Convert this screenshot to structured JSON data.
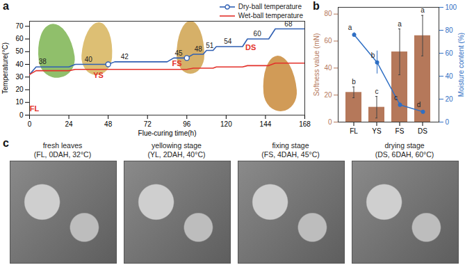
{
  "chart_data": [
    {
      "type": "line",
      "title": "a",
      "x_label": "Flue-curing time(h)",
      "y_label": "Temperature(°C)",
      "x": [
        0,
        4,
        24,
        28,
        48,
        52,
        84,
        88,
        96,
        100,
        106,
        108,
        112,
        114,
        130,
        133,
        146,
        150,
        168
      ],
      "xlim": [
        0,
        168
      ],
      "xticks": [
        0,
        24,
        48,
        72,
        96,
        120,
        144,
        168
      ],
      "ylim": [
        0,
        74
      ],
      "yticks": [
        0,
        10,
        20,
        30,
        40,
        50,
        60,
        70
      ],
      "legend": "top-right",
      "series": [
        {
          "name": "Dry-ball temperature",
          "color": "#2f5fb3",
          "marker": "circle",
          "values": [
            32,
            38,
            38,
            40,
            40,
            42,
            42,
            45,
            45,
            48,
            48,
            51,
            51,
            54,
            54,
            60,
            60,
            68,
            68
          ]
        },
        {
          "name": "Wet-ball temperature",
          "color": "#e3302a",
          "values": [
            32,
            35,
            35,
            36,
            36,
            36,
            36,
            36,
            36,
            37,
            37,
            37,
            37,
            38,
            38,
            39,
            39,
            41,
            41
          ]
        }
      ],
      "highlight_points": [
        {
          "x": 48,
          "y": 40
        },
        {
          "x": 96,
          "y": 45
        }
      ],
      "annotations": [
        {
          "text": "38",
          "x": 8,
          "y": 38
        },
        {
          "text": "40",
          "x": 36,
          "y": 40
        },
        {
          "text": "42",
          "x": 58,
          "y": 42
        },
        {
          "text": "45",
          "x": 91,
          "y": 45
        },
        {
          "text": "48",
          "x": 103,
          "y": 48
        },
        {
          "text": "51",
          "x": 110,
          "y": 51
        },
        {
          "text": "54",
          "x": 121,
          "y": 54
        },
        {
          "text": "60",
          "x": 139,
          "y": 60
        },
        {
          "text": "68",
          "x": 158,
          "y": 68
        },
        {
          "text": "FL",
          "x": 3,
          "y": 5,
          "color": "#e3302a"
        },
        {
          "text": "YS",
          "x": 42,
          "y": 31,
          "color": "#e3302a"
        },
        {
          "text": "FS",
          "x": 90,
          "y": 40.5,
          "color": "#e3302a"
        },
        {
          "text": "DS",
          "x": 135,
          "y": 53,
          "color": "#e3302a"
        }
      ]
    },
    {
      "type": "bar",
      "title": "b",
      "categories": [
        "FL",
        "YS",
        "FS",
        "DS"
      ],
      "y_label": "Softness value (mN)",
      "y2_label": "Moisture content (%)",
      "ylim": [
        0,
        85
      ],
      "yticks": [
        0,
        20,
        40,
        60,
        80
      ],
      "y2lim": [
        0,
        100
      ],
      "y2ticks": [
        0,
        20,
        40,
        60,
        80,
        100
      ],
      "series": [
        {
          "type": "bar",
          "color": "#b5785a",
          "values": [
            22,
            11,
            52,
            64
          ],
          "errors": [
            4,
            8,
            17,
            15
          ],
          "letters": [
            "b",
            "c",
            "a",
            "a"
          ]
        },
        {
          "type": "line",
          "axis": "y2",
          "color": "#2f6fc4",
          "marker": "circle",
          "values": [
            76,
            52,
            15,
            9
          ],
          "errors": [
            2,
            10,
            2,
            1
          ],
          "letters": [
            "a",
            "b",
            "c",
            "d"
          ]
        }
      ]
    },
    {
      "type": "image",
      "title": "c",
      "panels": [
        {
          "title": "fresh leaves",
          "subtitle": "(FL, 0DAH, 32°C)"
        },
        {
          "title": "yellowing stage",
          "subtitle": "(YL, 2DAH, 40°C)"
        },
        {
          "title": "fixing stage",
          "subtitle": "(FS, 4DAH, 45°C)"
        },
        {
          "title": "drying stage",
          "subtitle": "(DS, 6DAH, 60°C)"
        }
      ]
    }
  ]
}
